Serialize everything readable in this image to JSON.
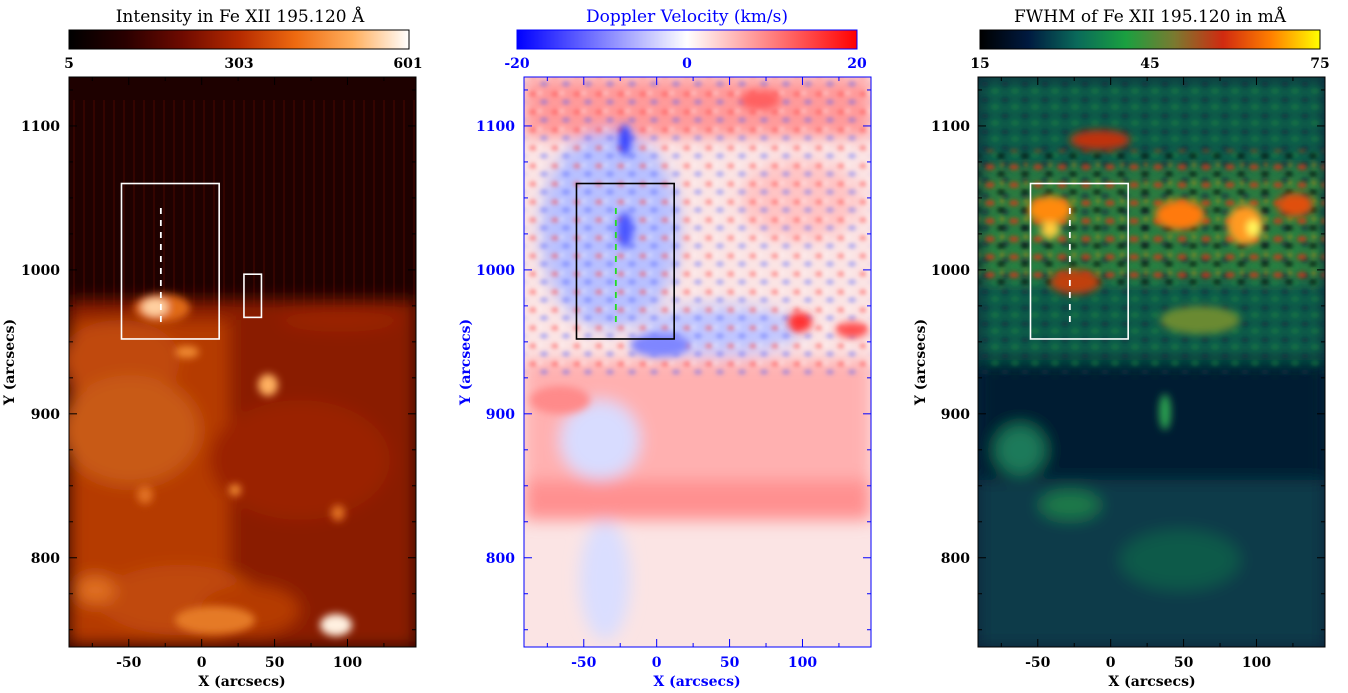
{
  "chart_data": [
    {
      "type": "heatmap",
      "title": "Intensity in Fe XII 195.120 Å",
      "colorbar": {
        "ticks": [
          "5",
          "303",
          "601"
        ],
        "range": [
          5,
          601
        ],
        "colors": [
          "#000000",
          "#2a0000",
          "#6e0a00",
          "#b52a00",
          "#ee6a10",
          "#ffae5c",
          "#ffffff"
        ]
      },
      "xlabel": "X (arcsecs)",
      "ylabel": "Y (arcsecs)",
      "xlim": [
        -91,
        147
      ],
      "ylim": [
        738,
        1134
      ],
      "xticks": [
        "-50",
        "0",
        "50",
        "100"
      ],
      "yticks": [
        "800",
        "900",
        "1000",
        "1100"
      ],
      "label_color": "#000000",
      "boxes": [
        {
          "x": [
            -55,
            12
          ],
          "y": [
            952,
            1060
          ],
          "color": "#ffffff"
        },
        {
          "x": [
            29,
            41
          ],
          "y": [
            967,
            997
          ],
          "color": "#ffffff"
        }
      ],
      "slit": {
        "x": -28,
        "y": [
          963,
          1043
        ],
        "color": "#ffffff"
      }
    },
    {
      "type": "heatmap",
      "title": "Doppler Velocity (km/s)",
      "colorbar": {
        "ticks": [
          "-20",
          "0",
          "20"
        ],
        "range": [
          -20,
          20
        ],
        "colors": [
          "#0000ff",
          "#7f7fff",
          "#ffffff",
          "#ff7f7f",
          "#ff0000"
        ]
      },
      "xlabel": "X (arcsecs)",
      "ylabel": "Y (arcsecs)",
      "xlim": [
        -91,
        147
      ],
      "ylim": [
        738,
        1134
      ],
      "xticks": [
        "-50",
        "0",
        "50",
        "100"
      ],
      "yticks": [
        "800",
        "900",
        "1000",
        "1100"
      ],
      "label_color": "#0000ff",
      "boxes": [
        {
          "x": [
            -55,
            12
          ],
          "y": [
            952,
            1060
          ],
          "color": "#000000"
        }
      ],
      "slit": {
        "x": -28,
        "y": [
          963,
          1043
        ],
        "color": "#22dd22"
      }
    },
    {
      "type": "heatmap",
      "title": "FWHM of Fe XII 195.120 in mÅ",
      "colorbar": {
        "ticks": [
          "15",
          "45",
          "75"
        ],
        "range": [
          15,
          75
        ],
        "colors": [
          "#000000",
          "#001a40",
          "#0a6a5a",
          "#1aa040",
          "#7a7a30",
          "#d02a10",
          "#ff8000",
          "#ffff00"
        ]
      },
      "xlabel": "X (arcsecs)",
      "ylabel": "Y (arcsecs)",
      "xlim": [
        -91,
        147
      ],
      "ylim": [
        738,
        1134
      ],
      "xticks": [
        "-50",
        "0",
        "50",
        "100"
      ],
      "yticks": [
        "800",
        "900",
        "1000",
        "1100"
      ],
      "label_color": "#000000",
      "boxes": [
        {
          "x": [
            -55,
            12
          ],
          "y": [
            952,
            1060
          ],
          "color": "#ffffff"
        }
      ],
      "slit": {
        "x": -28,
        "y": [
          963,
          1043
        ],
        "color": "#ffffff"
      }
    }
  ]
}
